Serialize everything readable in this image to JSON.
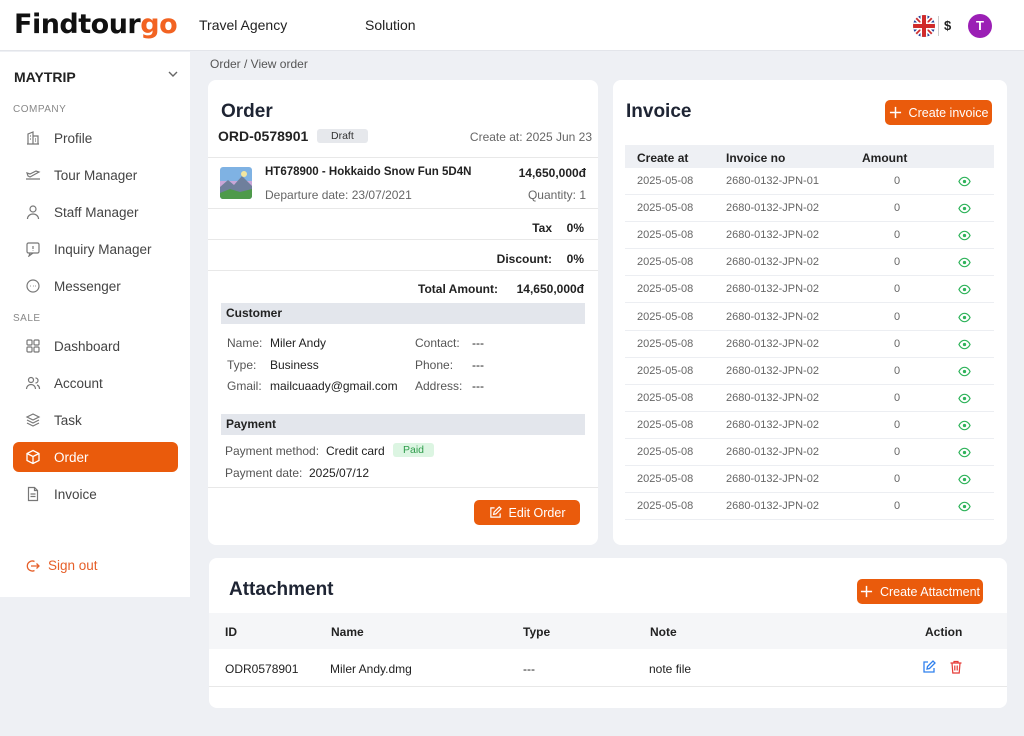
{
  "header": {
    "logo_main": "Findtour",
    "logo_accent": "go",
    "nav": [
      "Travel Agency",
      "Solution"
    ],
    "currency": "$",
    "avatar_initial": "T"
  },
  "sidebar": {
    "org": "MAYTRIP",
    "sections": {
      "company": "COMPANY",
      "sale": "SALE"
    },
    "company_items": [
      "Profile",
      "Tour Manager",
      "Staff Manager",
      "Inquiry Manager",
      "Messenger"
    ],
    "sale_items": [
      "Dashboard",
      "Account",
      "Task",
      "Order",
      "Invoice"
    ],
    "active": "Order",
    "sign_out": "Sign out"
  },
  "breadcrumb": "Order / View order",
  "order": {
    "title": "Order",
    "number": "ORD-0578901",
    "status": "Draft",
    "created": "Create at: 2025 Jun 23",
    "product": {
      "name": "HT678900 - Hokkaido Snow Fun 5D4N",
      "price": "14,650,000đ",
      "departure": "Departure date: 23/07/2021",
      "quantity": "Quantity: 1"
    },
    "tax_label": "Tax",
    "tax_value": "0%",
    "discount_label": "Discount:",
    "discount_value": "0%",
    "total_label": "Total Amount:",
    "total_value": "14,650,000đ",
    "customer": {
      "heading": "Customer",
      "name_label": "Name:",
      "name": "Miler Andy",
      "type_label": "Type:",
      "type": "Business",
      "gmail_label": "Gmail:",
      "gmail": "mailcuaady@gmail.com",
      "contact_label": "Contact:",
      "contact": "---",
      "phone_label": "Phone:",
      "phone": "---",
      "address_label": "Address:",
      "address": "---"
    },
    "payment": {
      "heading": "Payment",
      "method_label": "Payment method:",
      "method": "Credit card",
      "status": "Paid",
      "date_label": "Payment date:",
      "date": "2025/07/12"
    },
    "edit_button": "Edit Order"
  },
  "invoice": {
    "title": "Invoice",
    "create_button": "Create invoice",
    "columns": [
      "Create at",
      "Invoice no",
      "Amount"
    ],
    "rows": [
      [
        "2025-05-08",
        "2680-0132-JPN-01",
        "0"
      ],
      [
        "2025-05-08",
        "2680-0132-JPN-02",
        "0"
      ],
      [
        "2025-05-08",
        "2680-0132-JPN-02",
        "0"
      ],
      [
        "2025-05-08",
        "2680-0132-JPN-02",
        "0"
      ],
      [
        "2025-05-08",
        "2680-0132-JPN-02",
        "0"
      ],
      [
        "2025-05-08",
        "2680-0132-JPN-02",
        "0"
      ],
      [
        "2025-05-08",
        "2680-0132-JPN-02",
        "0"
      ],
      [
        "2025-05-08",
        "2680-0132-JPN-02",
        "0"
      ],
      [
        "2025-05-08",
        "2680-0132-JPN-02",
        "0"
      ],
      [
        "2025-05-08",
        "2680-0132-JPN-02",
        "0"
      ],
      [
        "2025-05-08",
        "2680-0132-JPN-02",
        "0"
      ],
      [
        "2025-05-08",
        "2680-0132-JPN-02",
        "0"
      ],
      [
        "2025-05-08",
        "2680-0132-JPN-02",
        "0"
      ]
    ]
  },
  "attachment": {
    "title": "Attachment",
    "create_button": "Create Attactment",
    "columns": [
      "ID",
      "Name",
      "Type",
      "Note",
      "Action"
    ],
    "rows": [
      [
        "ODR0578901",
        "Miler Andy.dmg",
        "---",
        "note file"
      ]
    ]
  },
  "colors": {
    "accent": "#ea5b0c",
    "avatar": "#9b1fb5",
    "paid_bg": "#dcf5e2",
    "paid_text": "#2e9c4b",
    "eye": "#2eb35a"
  }
}
